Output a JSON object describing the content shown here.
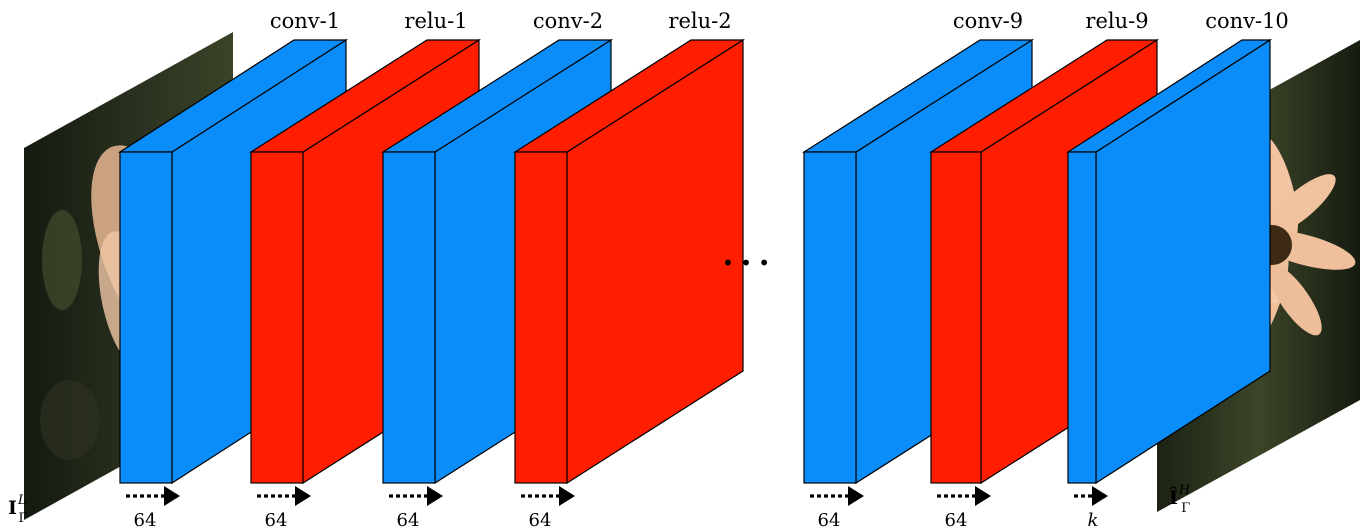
{
  "input": {
    "symbol": "I",
    "subscript": "Γ",
    "superscript": "L"
  },
  "output": {
    "symbol": "Î",
    "subscript": "Γ",
    "superscript": "H"
  },
  "colors": {
    "conv": "#0a8df9",
    "relu": "#ff1e00",
    "edge": "#000000",
    "image_dark": "#1b2116",
    "image_mid": "#3a4328",
    "flower_petal": "#f3c4a1",
    "flower_center": "#3d2a14"
  },
  "layers": [
    {
      "type": "conv",
      "label": "conv-1",
      "channels": "64"
    },
    {
      "type": "relu",
      "label": "relu-1",
      "channels": "64"
    },
    {
      "type": "conv",
      "label": "conv-2",
      "channels": "64"
    },
    {
      "type": "relu",
      "label": "relu-2",
      "channels": "64"
    },
    {
      "type": "conv",
      "label": "conv-9",
      "channels": "64"
    },
    {
      "type": "relu",
      "label": "relu-9",
      "channels": "64"
    },
    {
      "type": "conv",
      "label": "conv-10",
      "channels": "k"
    }
  ],
  "ellipsis": "• • •"
}
